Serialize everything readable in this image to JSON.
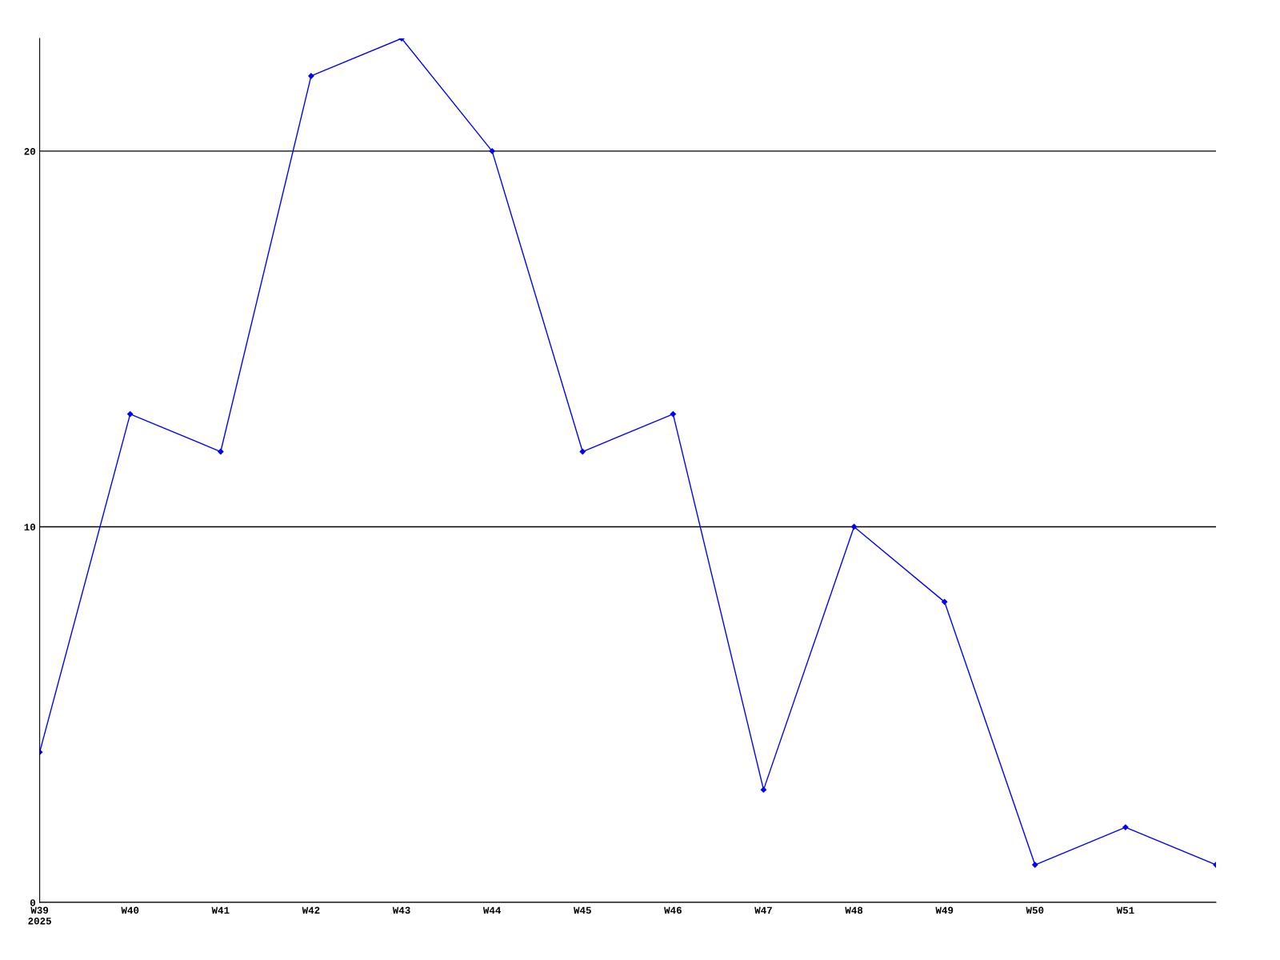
{
  "chart_data": {
    "type": "line",
    "categories": [
      "W39\n2025",
      "W40",
      "W41",
      "W42",
      "W43",
      "W44",
      "W45",
      "W46",
      "W47",
      "W48",
      "W49",
      "W50",
      "W51",
      null
    ],
    "series": [
      {
        "color": "#0000ff",
        "values": [
          4,
          13,
          12,
          22,
          23,
          20,
          12,
          13,
          3,
          10,
          8,
          1,
          2,
          1
        ]
      }
    ],
    "ylim": [
      0,
      23
    ],
    "yticks": [
      0,
      10,
      20
    ],
    "grid": "y",
    "marker": "diamond",
    "line_style": "solid",
    "legend": false
  }
}
